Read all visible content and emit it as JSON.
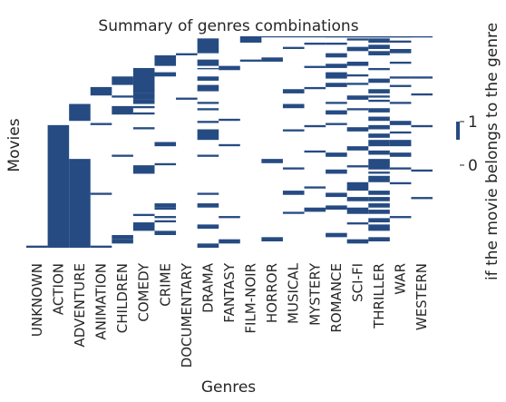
{
  "chart_data": {
    "type": "heatmap",
    "title": "Summary of genres combinations",
    "xlabel": "Genres",
    "ylabel": "Movies",
    "colorbar_label": "if the movie belongs to the genre",
    "colorbar_ticks": [
      "0",
      "1"
    ],
    "colors": {
      "belongs": "#264b82",
      "absent": "#ffffff"
    },
    "categories": [
      "UNKNOWN",
      "ACTION",
      "ADVENTURE",
      "ANIMATION",
      "CHILDREN",
      "COMEDY",
      "CRIME",
      "DOCUMENTARY",
      "DRAMA",
      "FANTASY",
      "FILM-NOIR",
      "HORROR",
      "MUSICAL",
      "MYSTERY",
      "ROMANCE",
      "SCI-FI",
      "THRILLER",
      "WAR",
      "WESTERN"
    ],
    "row_range": [
      0,
      100
    ],
    "memberships": {
      "UNKNOWN": [
        [
          99,
          100
        ]
      ],
      "ACTION": [
        [
          42,
          100
        ]
      ],
      "ADVENTURE": [
        [
          32,
          40
        ],
        [
          58,
          100
        ]
      ],
      "ANIMATION": [
        [
          24,
          28
        ],
        [
          41,
          42
        ],
        [
          74,
          75
        ],
        [
          99,
          100
        ]
      ],
      "CHILDREN": [
        [
          19,
          23
        ],
        [
          28,
          29
        ],
        [
          33,
          37
        ],
        [
          56,
          57
        ],
        [
          94,
          96
        ],
        [
          96,
          98
        ]
      ],
      "COMEDY": [
        [
          15,
          27
        ],
        [
          27,
          30
        ],
        [
          30,
          32
        ],
        [
          33,
          34
        ],
        [
          36,
          37
        ],
        [
          43,
          44
        ],
        [
          61,
          65
        ],
        [
          84,
          85
        ],
        [
          88,
          92
        ]
      ],
      "CRIME": [
        [
          9,
          14
        ],
        [
          17,
          19
        ],
        [
          50,
          52
        ],
        [
          60,
          61
        ],
        [
          79,
          81
        ],
        [
          81,
          82
        ],
        [
          85,
          86
        ],
        [
          87,
          88
        ],
        [
          92,
          94
        ]
      ],
      "DOCUMENTARY": [
        [
          8,
          9
        ],
        [
          29,
          30
        ]
      ],
      "DRAMA": [
        [
          1,
          8
        ],
        [
          11,
          14
        ],
        [
          15,
          15.6
        ],
        [
          19,
          21
        ],
        [
          23,
          26
        ],
        [
          31,
          32
        ],
        [
          34,
          35
        ],
        [
          40,
          41
        ],
        [
          44,
          49
        ],
        [
          56,
          57
        ],
        [
          74,
          75
        ],
        [
          79,
          81
        ],
        [
          89,
          91
        ],
        [
          98,
          100
        ]
      ],
      "FANTASY": [
        [
          14,
          16
        ],
        [
          39,
          40
        ],
        [
          51,
          52
        ],
        [
          85,
          86
        ],
        [
          96,
          98
        ]
      ],
      "FILM-NOIR": [
        [
          0,
          3
        ],
        [
          11,
          12
        ]
      ],
      "HORROR": [
        [
          -4,
          -1
        ],
        [
          10,
          12
        ],
        [
          58,
          60
        ],
        [
          95,
          97
        ]
      ],
      "MUSICAL": [
        [
          -6,
          -4
        ],
        [
          5,
          6
        ],
        [
          25,
          27
        ],
        [
          32,
          34
        ],
        [
          44,
          45
        ],
        [
          62,
          63
        ],
        [
          73,
          75
        ],
        [
          83,
          84
        ]
      ],
      "MYSTERY": [
        [
          -8,
          -6
        ],
        [
          3,
          4
        ],
        [
          14,
          15
        ],
        [
          24,
          25
        ],
        [
          42,
          43
        ],
        [
          54,
          55
        ],
        [
          71,
          72
        ],
        [
          81,
          83
        ]
      ],
      "ROMANCE": [
        [
          -10,
          -8
        ],
        [
          -5,
          -4
        ],
        [
          3,
          4
        ],
        [
          8,
          10
        ],
        [
          13,
          15
        ],
        [
          17,
          20
        ],
        [
          22,
          24
        ],
        [
          31,
          32
        ],
        [
          35,
          37
        ],
        [
          41,
          42
        ],
        [
          55,
          57
        ],
        [
          63,
          65
        ],
        [
          74,
          76
        ],
        [
          80,
          82
        ],
        [
          93,
          95
        ]
      ],
      "SCI-FI": [
        [
          -12,
          -10
        ],
        [
          -7,
          -6
        ],
        [
          -3,
          -2
        ],
        [
          1,
          2
        ],
        [
          5,
          7
        ],
        [
          12,
          14
        ],
        [
          18,
          19
        ],
        [
          22,
          23
        ],
        [
          28,
          30
        ],
        [
          34,
          35
        ],
        [
          43,
          45
        ],
        [
          52,
          54
        ],
        [
          61,
          62
        ],
        [
          69,
          73
        ],
        [
          76,
          78
        ],
        [
          81,
          84
        ],
        [
          88,
          89
        ],
        [
          96,
          98
        ]
      ],
      "THRILLER": [
        [
          -12,
          -11
        ],
        [
          -8,
          -7
        ],
        [
          -6,
          -5
        ],
        [
          -2,
          0
        ],
        [
          1,
          3
        ],
        [
          4,
          6
        ],
        [
          7,
          9
        ],
        [
          15,
          16
        ],
        [
          20,
          22
        ],
        [
          25,
          27
        ],
        [
          28,
          29
        ],
        [
          30,
          31
        ],
        [
          34,
          36
        ],
        [
          38,
          40
        ],
        [
          42,
          44
        ],
        [
          46,
          48
        ],
        [
          49,
          52
        ],
        [
          54,
          56
        ],
        [
          58,
          63
        ],
        [
          64,
          65
        ],
        [
          66,
          69
        ],
        [
          73,
          75
        ],
        [
          76,
          78
        ],
        [
          79,
          81
        ],
        [
          82,
          84
        ],
        [
          86,
          88
        ],
        [
          89,
          92
        ],
        [
          95,
          97
        ]
      ],
      "WAR": [
        [
          -13,
          -12
        ],
        [
          -10,
          -8
        ],
        [
          -4,
          -2
        ],
        [
          2,
          3
        ],
        [
          6,
          8
        ],
        [
          12,
          13
        ],
        [
          19,
          20
        ],
        [
          23,
          24
        ],
        [
          31,
          32
        ],
        [
          40,
          42
        ],
        [
          45,
          46
        ],
        [
          49,
          52
        ],
        [
          55,
          57
        ],
        [
          62,
          63
        ],
        [
          69,
          70
        ],
        [
          85,
          86
        ]
      ],
      "WESTERN": [
        [
          -13,
          -12
        ],
        [
          -2,
          0
        ],
        [
          19,
          20
        ],
        [
          27,
          28
        ],
        [
          42,
          43
        ],
        [
          63,
          64
        ],
        [
          76,
          77
        ]
      ]
    }
  }
}
